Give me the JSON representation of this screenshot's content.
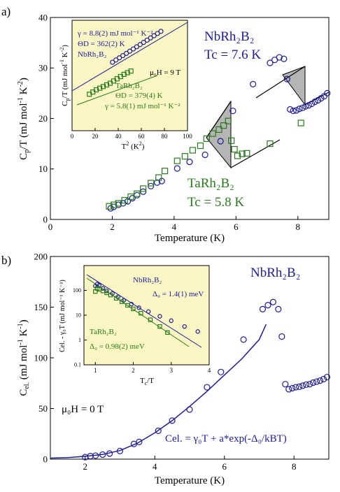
{
  "chart_data": [
    {
      "panel_label": "a)",
      "type": "scatter",
      "xlabel": "Temperature (K)",
      "ylabel": "C_p/T (mJ mol^-1 K^-2)",
      "xlim": [
        0,
        9
      ],
      "ylim": [
        0,
        40
      ],
      "xticks": [
        0,
        2,
        4,
        6,
        8
      ],
      "yticks": [
        0,
        10,
        20,
        30,
        40
      ],
      "annotations": {
        "nb_compound": "NbRh₂B₂",
        "nb_tc": "Tc = 7.6 K",
        "ta_compound": "TaRh₂B₂",
        "ta_tc": "Tc = 5.8 K"
      },
      "series": [
        {
          "name": "NbRh2B2",
          "marker": "circle",
          "color": "#1c1c9a",
          "x": [
            1.95,
            2.05,
            2.2,
            2.35,
            2.5,
            2.65,
            2.8,
            3.0,
            3.25,
            3.45,
            3.6,
            4.1,
            4.5,
            5.0,
            5.5,
            5.9,
            6.55,
            7.1,
            7.25,
            7.4,
            7.55,
            7.65,
            7.75,
            7.85,
            7.95,
            8.05,
            8.15,
            8.25,
            8.35,
            8.45,
            8.55,
            8.65,
            8.75,
            8.85,
            8.95
          ],
          "y": [
            2.2,
            2.5,
            2.9,
            3.2,
            3.6,
            4.2,
            4.8,
            5.5,
            6.6,
            7.3,
            7.6,
            10.1,
            11.4,
            12.8,
            15.5,
            21.5,
            26.8,
            31,
            31.6,
            32.1,
            31.8,
            27.8,
            21.8,
            21.5,
            21.6,
            21.9,
            22.1,
            22.4,
            22.6,
            22.9,
            23.3,
            23.6,
            24.0,
            24.4,
            25.0
          ]
        },
        {
          "name": "TaRh2B2",
          "marker": "square",
          "color": "#2a7a1e",
          "x": [
            1.9,
            2.05,
            2.2,
            2.4,
            2.6,
            2.8,
            3.0,
            3.25,
            3.5,
            3.7,
            4.1,
            4.35,
            4.6,
            4.85,
            5.05,
            5.25,
            5.45,
            5.6,
            5.75,
            5.85,
            5.95,
            6.05,
            6.2,
            6.35,
            7.1,
            8.1
          ],
          "y": [
            2.6,
            2.9,
            3.2,
            3.8,
            4.5,
            5.1,
            6.1,
            7.2,
            8.3,
            9.6,
            11.6,
            12.5,
            13.7,
            14.6,
            16.0,
            17.0,
            17.8,
            18.6,
            19.5,
            15.6,
            13.9,
            12.6,
            13.0,
            13.1,
            15.0,
            19.1
          ]
        }
      ],
      "inset": {
        "xlabel": "T² (K²)",
        "ylabel": "C_p/T (mJ mol^-1 K^-2)",
        "xlim": [
          0,
          100
        ],
        "xticks": [
          0,
          20,
          40,
          60,
          80,
          100
        ],
        "annotations": {
          "nb_gamma": "γ = 8.8(2) mJ mol⁻¹ K⁻²",
          "nb_theta": "ΘD = 362(2) K",
          "nb_name": "NbRh₂B₂",
          "field": "μ₀H = 9 T",
          "ta_name": "TaRh₂B₂",
          "ta_theta": "ΘD = 379(4) K",
          "ta_gamma": "γ = 5.8(1) mJ mol⁻¹ K⁻²"
        },
        "series": [
          {
            "name": "NbRh2B2",
            "marker": "circle",
            "color": "#1c1c9a",
            "x": [
              35,
              38,
              41,
              44,
              47,
              50,
              53,
              56,
              59,
              62,
              65,
              68,
              71,
              74,
              77
            ],
            "y": [
              0.62,
              0.64,
              0.66,
              0.68,
              0.7,
              0.72,
              0.74,
              0.76,
              0.78,
              0.8,
              0.82,
              0.84,
              0.86,
              0.88,
              0.9
            ]
          },
          {
            "name": "TaRh2B2",
            "marker": "square",
            "color": "#2a7a1e",
            "x": [
              15,
              18,
              21,
              24,
              27,
              30,
              33,
              36,
              39,
              42,
              45,
              48,
              51
            ],
            "y": [
              0.33,
              0.35,
              0.37,
              0.385,
              0.4,
              0.415,
              0.43,
              0.45,
              0.47,
              0.49,
              0.51,
              0.525,
              0.54
            ]
          }
        ]
      }
    },
    {
      "panel_label": "b)",
      "type": "scatter",
      "xlabel": "Temperature (K)",
      "ylabel": "C_el. (mJ mol^-1 K^-1)",
      "xlim": [
        1,
        9
      ],
      "ylim": [
        0,
        200
      ],
      "xticks": [
        2,
        4,
        6,
        8
      ],
      "yticks": [
        0,
        50,
        100,
        150,
        200
      ],
      "annotations": {
        "compound": "NbRh₂B₂",
        "field": "μ₀H = 0 T",
        "formula": "Cel. = γ₀T + a*exp(-Δ₀/kBT)"
      },
      "series": [
        {
          "name": "NbRh2B2",
          "marker": "circle",
          "color": "#1c1c9a",
          "x": [
            2.0,
            2.15,
            2.3,
            2.5,
            2.7,
            3.0,
            3.4,
            3.55,
            4.1,
            4.5,
            5.0,
            5.5,
            5.9,
            6.55,
            7.1,
            7.25,
            7.4,
            7.55,
            7.65,
            7.75,
            7.85,
            7.95,
            8.05,
            8.15,
            8.25,
            8.35,
            8.45,
            8.55,
            8.65,
            8.75,
            8.85,
            8.95
          ],
          "y": [
            2,
            3,
            3.5,
            4.5,
            5.5,
            8,
            15,
            17,
            28,
            38,
            49,
            71,
            86,
            118,
            148,
            152,
            155,
            148,
            121,
            74,
            69,
            70,
            71,
            71.5,
            72.5,
            73.5,
            74,
            75.5,
            76.5,
            77.5,
            79,
            81
          ]
        }
      ],
      "fit_curve": {
        "x": [
          1.0,
          1.5,
          2.0,
          2.5,
          3.0,
          3.5,
          4.0,
          4.5,
          5.0,
          5.5,
          6.0,
          6.5,
          7.0,
          7.2
        ],
        "y": [
          1,
          1.5,
          2.8,
          4.6,
          8.5,
          15.8,
          26,
          38,
          52,
          67,
          83,
          99,
          118,
          133
        ]
      },
      "inset": {
        "xlabel": "Tc/T",
        "ylabel": "Cel. - γ₀T (mJ mol⁻¹ K⁻¹)",
        "xlim": [
          0.7,
          4
        ],
        "xticks": [
          1,
          2,
          3,
          4
        ],
        "yticks_labels": [
          "100",
          "10",
          "1",
          "0.1"
        ],
        "annotations": {
          "nb_name": "NbRh₂B₂",
          "nb_gap": "Δ₀ = 1.4(1) meV",
          "ta_name": "TaRh₂B₂",
          "ta_gap": "Δ₀ = 0.98(2) meV"
        },
        "series": [
          {
            "name": "NbRh2B2",
            "marker": "circle",
            "color": "#1c1c9a",
            "x": [
              1.0,
              1.05,
              1.1,
              1.2,
              1.3,
              1.45,
              1.6,
              1.75,
              1.95,
              2.15,
              2.4,
              2.7,
              3.0,
              3.35,
              3.7
            ],
            "y": [
              150,
              180,
              160,
              120,
              95,
              75,
              55,
              40,
              28,
              20,
              14,
              9,
              6,
              3.5,
              2.2
            ]
          },
          {
            "name": "TaRh2B2",
            "marker": "square",
            "color": "#2a7a1e",
            "x": [
              1.0,
              1.05,
              1.1,
              1.2,
              1.3,
              1.4,
              1.55,
              1.7,
              1.85,
              2.0,
              2.2,
              2.45,
              2.7,
              2.9
            ],
            "y": [
              90,
              120,
              110,
              95,
              80,
              65,
              48,
              35,
              25,
              18,
              12,
              6.5,
              3.5,
              2.0
            ]
          }
        ]
      }
    }
  ]
}
